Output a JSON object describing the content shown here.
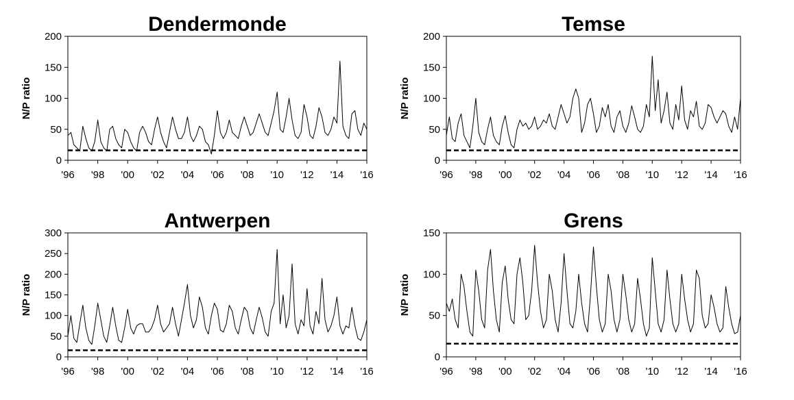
{
  "chart_data": [
    {
      "type": "line",
      "title": "Temse",
      "ylabel": "N/P ratio",
      "xlabel": "",
      "xlim": [
        1996,
        2016
      ],
      "ylim": [
        0,
        200
      ],
      "yticks": [
        0,
        50,
        100,
        150,
        200
      ],
      "xtick_labels": [
        "'96",
        "'98",
        "'00",
        "'02",
        "'04",
        "'06",
        "'08",
        "'10",
        "'12",
        "'14",
        "'16"
      ],
      "threshold": 16,
      "grid": false,
      "series": [
        {
          "x": [
            1996.0,
            1996.2,
            1996.4,
            1996.6,
            1996.8,
            1997.0,
            1997.2,
            1997.4,
            1997.6,
            1997.8,
            1998.0,
            1998.2,
            1998.4,
            1998.6,
            1998.8,
            1999.0,
            1999.2,
            1999.4,
            1999.6,
            1999.8,
            2000.0,
            2000.2,
            2000.4,
            2000.6,
            2000.8,
            2001.0,
            2001.2,
            2001.4,
            2001.6,
            2001.8,
            2002.0,
            2002.2,
            2002.4,
            2002.6,
            2002.8,
            2003.0,
            2003.2,
            2003.4,
            2003.6,
            2003.8,
            2004.0,
            2004.2,
            2004.4,
            2004.6,
            2004.8,
            2005.0,
            2005.2,
            2005.4,
            2005.6,
            2005.8,
            2006.0,
            2006.2,
            2006.4,
            2006.6,
            2006.8,
            2007.0,
            2007.2,
            2007.4,
            2007.6,
            2007.8,
            2008.0,
            2008.2,
            2008.4,
            2008.6,
            2008.8,
            2009.0,
            2009.2,
            2009.4,
            2009.6,
            2009.8,
            2010.0,
            2010.2,
            2010.4,
            2010.6,
            2010.8,
            2011.0,
            2011.2,
            2011.4,
            2011.6,
            2011.8,
            2012.0,
            2012.2,
            2012.4,
            2012.6,
            2012.8,
            2013.0,
            2013.2,
            2013.4,
            2013.6,
            2013.8,
            2014.0,
            2014.2,
            2014.4,
            2014.6,
            2014.8,
            2015.0,
            2015.2,
            2015.4,
            2015.6,
            2015.8,
            2016.0
          ],
          "y": [
            40,
            70,
            35,
            30,
            60,
            75,
            40,
            30,
            20,
            55,
            100,
            45,
            30,
            25,
            50,
            70,
            40,
            30,
            25,
            55,
            72,
            45,
            25,
            20,
            50,
            65,
            55,
            60,
            50,
            55,
            70,
            50,
            55,
            65,
            60,
            75,
            55,
            50,
            70,
            90,
            75,
            60,
            70,
            100,
            115,
            100,
            45,
            60,
            90,
            100,
            75,
            45,
            55,
            85,
            70,
            90,
            55,
            45,
            70,
            80,
            55,
            45,
            60,
            88,
            70,
            50,
            45,
            55,
            90,
            70,
            168,
            80,
            130,
            60,
            80,
            110,
            60,
            50,
            90,
            65,
            120,
            65,
            50,
            80,
            70,
            95,
            55,
            50,
            60,
            90,
            85,
            70,
            60,
            70,
            80,
            75,
            55,
            45,
            70,
            50,
            100
          ]
        }
      ]
    },
    {
      "type": "line",
      "title": "Grens",
      "ylabel": "N/P ratio",
      "xlabel": "",
      "xlim": [
        1996,
        2016
      ],
      "ylim": [
        0,
        150
      ],
      "yticks": [
        0,
        50,
        100,
        150
      ],
      "xtick_labels": [
        "'96",
        "'98",
        "'00",
        "'02",
        "'04",
        "'06",
        "'08",
        "'10",
        "'12",
        "'14",
        "'16"
      ],
      "threshold": 16,
      "grid": false,
      "series": [
        {
          "x": [
            1996.0,
            1996.2,
            1996.4,
            1996.6,
            1996.8,
            1997.0,
            1997.2,
            1997.4,
            1997.6,
            1997.8,
            1998.0,
            1998.2,
            1998.4,
            1998.6,
            1998.8,
            1999.0,
            1999.2,
            1999.4,
            1999.6,
            1999.8,
            2000.0,
            2000.2,
            2000.4,
            2000.6,
            2000.8,
            2001.0,
            2001.2,
            2001.4,
            2001.6,
            2001.8,
            2002.0,
            2002.2,
            2002.4,
            2002.6,
            2002.8,
            2003.0,
            2003.2,
            2003.4,
            2003.6,
            2003.8,
            2004.0,
            2004.2,
            2004.4,
            2004.6,
            2004.8,
            2005.0,
            2005.2,
            2005.4,
            2005.6,
            2005.8,
            2006.0,
            2006.2,
            2006.4,
            2006.6,
            2006.8,
            2007.0,
            2007.2,
            2007.4,
            2007.6,
            2007.8,
            2008.0,
            2008.2,
            2008.4,
            2008.6,
            2008.8,
            2009.0,
            2009.2,
            2009.4,
            2009.6,
            2009.8,
            2010.0,
            2010.2,
            2010.4,
            2010.6,
            2010.8,
            2011.0,
            2011.2,
            2011.4,
            2011.6,
            2011.8,
            2012.0,
            2012.2,
            2012.4,
            2012.6,
            2012.8,
            2013.0,
            2013.2,
            2013.4,
            2013.6,
            2013.8,
            2014.0,
            2014.2,
            2014.4,
            2014.6,
            2014.8,
            2015.0,
            2015.2,
            2015.4,
            2015.6,
            2015.8,
            2016.0
          ],
          "y": [
            65,
            55,
            70,
            45,
            35,
            100,
            85,
            55,
            30,
            25,
            105,
            80,
            45,
            35,
            105,
            130,
            80,
            45,
            30,
            90,
            110,
            70,
            45,
            40,
            100,
            120,
            90,
            45,
            50,
            80,
            135,
            90,
            55,
            35,
            45,
            100,
            80,
            45,
            30,
            65,
            125,
            80,
            40,
            35,
            55,
            100,
            65,
            40,
            30,
            75,
            133,
            85,
            45,
            30,
            40,
            100,
            80,
            45,
            30,
            45,
            100,
            75,
            45,
            30,
            40,
            95,
            70,
            40,
            25,
            35,
            120,
            80,
            40,
            30,
            45,
            105,
            70,
            40,
            30,
            40,
            100,
            70,
            45,
            30,
            40,
            105,
            95,
            50,
            35,
            40,
            75,
            60,
            40,
            30,
            35,
            85,
            60,
            40,
            28,
            30,
            50
          ]
        }
      ]
    },
    {
      "type": "line",
      "title": "Antwerpen",
      "ylabel": "N/P ratio",
      "xlabel": "",
      "xlim": [
        1996,
        2016
      ],
      "ylim": [
        0,
        300
      ],
      "yticks": [
        0,
        50,
        100,
        150,
        200,
        250,
        300
      ],
      "xtick_labels": [
        "'96",
        "'98",
        "'00",
        "'02",
        "'04",
        "'06",
        "'08",
        "'10",
        "'12",
        "'14",
        "'16"
      ],
      "threshold": 16,
      "grid": false,
      "series": [
        {
          "x": [
            1996.0,
            1996.2,
            1996.4,
            1996.6,
            1996.8,
            1997.0,
            1997.2,
            1997.4,
            1997.6,
            1997.8,
            1998.0,
            1998.2,
            1998.4,
            1998.6,
            1998.8,
            1999.0,
            1999.2,
            1999.4,
            1999.6,
            1999.8,
            2000.0,
            2000.2,
            2000.4,
            2000.6,
            2000.8,
            2001.0,
            2001.2,
            2001.4,
            2001.6,
            2001.8,
            2002.0,
            2002.2,
            2002.4,
            2002.6,
            2002.8,
            2003.0,
            2003.2,
            2003.4,
            2003.6,
            2003.8,
            2004.0,
            2004.2,
            2004.4,
            2004.6,
            2004.8,
            2005.0,
            2005.2,
            2005.4,
            2005.6,
            2005.8,
            2006.0,
            2006.2,
            2006.4,
            2006.6,
            2006.8,
            2007.0,
            2007.2,
            2007.4,
            2007.6,
            2007.8,
            2008.0,
            2008.2,
            2008.4,
            2008.6,
            2008.8,
            2009.0,
            2009.2,
            2009.4,
            2009.6,
            2009.8,
            2010.0,
            2010.2,
            2010.4,
            2010.6,
            2010.8,
            2011.0,
            2011.2,
            2011.4,
            2011.6,
            2011.8,
            2012.0,
            2012.2,
            2012.4,
            2012.6,
            2012.8,
            2013.0,
            2013.2,
            2013.4,
            2013.6,
            2013.8,
            2014.0,
            2014.2,
            2014.4,
            2014.6,
            2014.8,
            2015.0,
            2015.2,
            2015.4,
            2015.6,
            2015.8,
            2016.0
          ],
          "y": [
            50,
            100,
            45,
            35,
            80,
            125,
            70,
            40,
            30,
            75,
            130,
            90,
            50,
            35,
            75,
            120,
            75,
            40,
            35,
            70,
            115,
            70,
            55,
            75,
            80,
            80,
            60,
            60,
            70,
            90,
            125,
            80,
            60,
            70,
            80,
            120,
            80,
            50,
            90,
            130,
            175,
            100,
            70,
            90,
            145,
            120,
            70,
            55,
            100,
            130,
            115,
            65,
            60,
            80,
            125,
            110,
            70,
            55,
            90,
            120,
            110,
            70,
            55,
            90,
            120,
            95,
            60,
            50,
            110,
            130,
            260,
            80,
            150,
            70,
            100,
            225,
            80,
            55,
            90,
            75,
            165,
            75,
            55,
            110,
            80,
            190,
            90,
            60,
            75,
            100,
            145,
            75,
            55,
            75,
            70,
            120,
            75,
            45,
            40,
            60,
            90
          ]
        }
      ]
    },
    {
      "type": "line",
      "title": "Dendermonde",
      "ylabel": "N/P ratio",
      "xlabel": "",
      "xlim": [
        1996,
        2016
      ],
      "ylim": [
        0,
        200
      ],
      "yticks": [
        0,
        50,
        100,
        150,
        200
      ],
      "xtick_labels": [
        "'96",
        "'98",
        "'00",
        "'02",
        "'04",
        "'06",
        "'08",
        "'10",
        "'12",
        "'14",
        "'16"
      ],
      "threshold": 16,
      "grid": false,
      "series": [
        {
          "x": [
            1996.0,
            1996.2,
            1996.4,
            1996.6,
            1996.8,
            1997.0,
            1997.2,
            1997.4,
            1997.6,
            1997.8,
            1998.0,
            1998.2,
            1998.4,
            1998.6,
            1998.8,
            1999.0,
            1999.2,
            1999.4,
            1999.6,
            1999.8,
            2000.0,
            2000.2,
            2000.4,
            2000.6,
            2000.8,
            2001.0,
            2001.2,
            2001.4,
            2001.6,
            2001.8,
            2002.0,
            2002.2,
            2002.4,
            2002.6,
            2002.8,
            2003.0,
            2003.2,
            2003.4,
            2003.6,
            2003.8,
            2004.0,
            2004.2,
            2004.4,
            2004.6,
            2004.8,
            2005.0,
            2005.2,
            2005.4,
            2005.6,
            2005.8,
            2006.0,
            2006.2,
            2006.4,
            2006.6,
            2006.8,
            2007.0,
            2007.2,
            2007.4,
            2007.6,
            2007.8,
            2008.0,
            2008.2,
            2008.4,
            2008.6,
            2008.8,
            2009.0,
            2009.2,
            2009.4,
            2009.6,
            2009.8,
            2010.0,
            2010.2,
            2010.4,
            2010.6,
            2010.8,
            2011.0,
            2011.2,
            2011.4,
            2011.6,
            2011.8,
            2012.0,
            2012.2,
            2012.4,
            2012.6,
            2012.8,
            2013.0,
            2013.2,
            2013.4,
            2013.6,
            2013.8,
            2014.0,
            2014.2,
            2014.4,
            2014.6,
            2014.8,
            2015.0,
            2015.2,
            2015.4,
            2015.6,
            2015.8,
            2016.0
          ],
          "y": [
            40,
            45,
            25,
            20,
            15,
            55,
            35,
            20,
            15,
            30,
            65,
            30,
            20,
            15,
            50,
            55,
            35,
            25,
            20,
            50,
            45,
            30,
            20,
            15,
            45,
            55,
            45,
            30,
            25,
            50,
            70,
            45,
            30,
            20,
            45,
            70,
            50,
            35,
            35,
            45,
            70,
            40,
            30,
            40,
            55,
            50,
            30,
            25,
            10,
            40,
            80,
            45,
            35,
            45,
            65,
            45,
            40,
            35,
            55,
            70,
            55,
            40,
            45,
            60,
            75,
            60,
            45,
            40,
            60,
            80,
            110,
            50,
            45,
            70,
            100,
            65,
            40,
            35,
            45,
            90,
            70,
            40,
            35,
            55,
            85,
            70,
            45,
            40,
            50,
            70,
            60,
            160,
            55,
            40,
            35,
            75,
            80,
            50,
            40,
            60,
            50
          ]
        }
      ]
    }
  ]
}
